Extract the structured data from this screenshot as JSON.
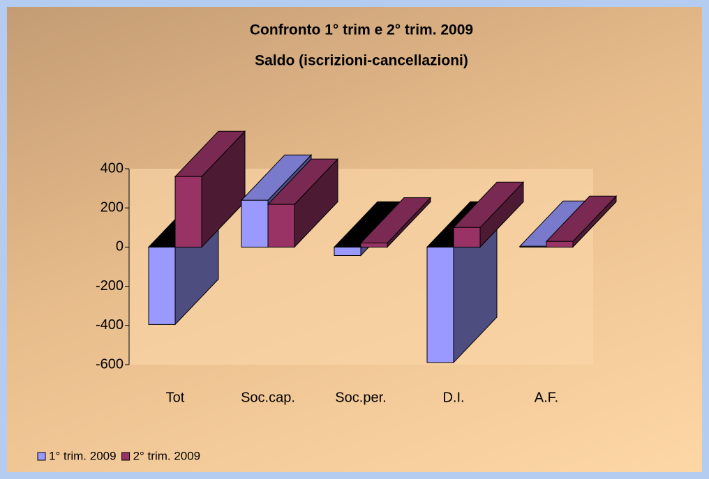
{
  "chart_data": {
    "type": "bar3d",
    "title": "Confronto 1° trim e 2° trim. 2009",
    "subtitle": "Saldo (iscrizioni-cancellazioni)",
    "categories": [
      "Tot",
      "Soc.cap.",
      "Soc.per.",
      "D.I.",
      "A.F."
    ],
    "series": [
      {
        "name": "1° trim. 2009",
        "color": "#9999ff",
        "values": [
          -395,
          239,
          -43,
          -589,
          4
        ]
      },
      {
        "name": "2° trim. 2009",
        "color": "#993366",
        "values": [
          360,
          218,
          21,
          100,
          29
        ]
      }
    ],
    "ylim": [
      -600,
      400
    ],
    "yticks": [
      400,
      200,
      0,
      -200,
      -400,
      -600
    ],
    "legend": "bottom-left"
  }
}
